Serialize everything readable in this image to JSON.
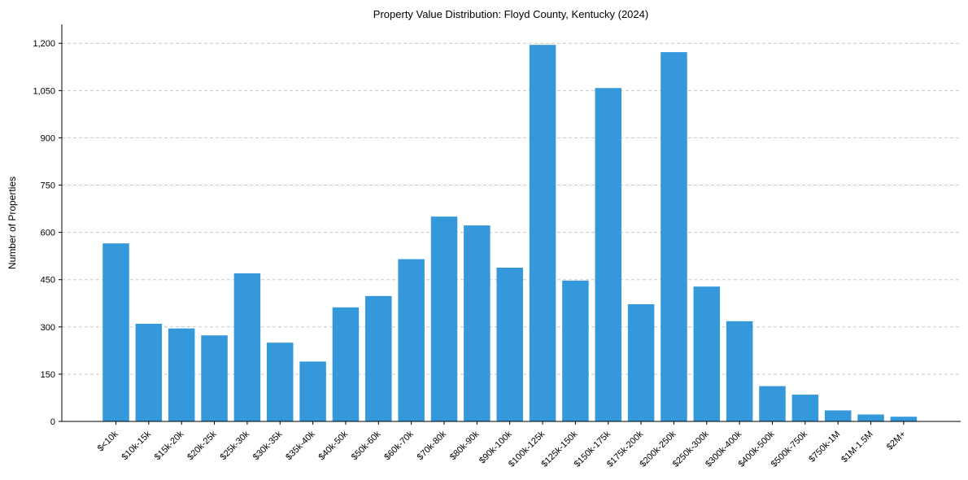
{
  "chart_data": {
    "type": "bar",
    "title": "Property Value Distribution: Floyd County, Kentucky (2024)",
    "xlabel": "",
    "ylabel": "Number of Properties",
    "ylim": [
      0,
      1260
    ],
    "yticks": [
      0,
      150,
      300,
      450,
      600,
      750,
      900,
      1050,
      1200
    ],
    "ytick_labels": [
      "0",
      "150",
      "300",
      "450",
      "600",
      "750",
      "900",
      "1,050",
      "1,200"
    ],
    "grid": "y",
    "categories": [
      "$<10k",
      "$10k-15k",
      "$15k-20k",
      "$20k-25k",
      "$25k-30k",
      "$30k-35k",
      "$35k-40k",
      "$40k-50k",
      "$50k-60k",
      "$60k-70k",
      "$70k-80k",
      "$80k-90k",
      "$90k-100k",
      "$100k-125k",
      "$125k-150k",
      "$150k-175k",
      "$175k-200k",
      "$200k-250k",
      "$250k-300k",
      "$300k-400k",
      "$400k-500k",
      "$500k-750k",
      "$750k-1M",
      "$1M-1.5M",
      "$2M+"
    ],
    "values": [
      565,
      310,
      295,
      273,
      470,
      250,
      190,
      362,
      398,
      515,
      650,
      622,
      488,
      1195,
      447,
      1058,
      372,
      1172,
      428,
      318,
      112,
      85,
      35,
      22,
      15
    ],
    "bar_color": "#3498db"
  }
}
